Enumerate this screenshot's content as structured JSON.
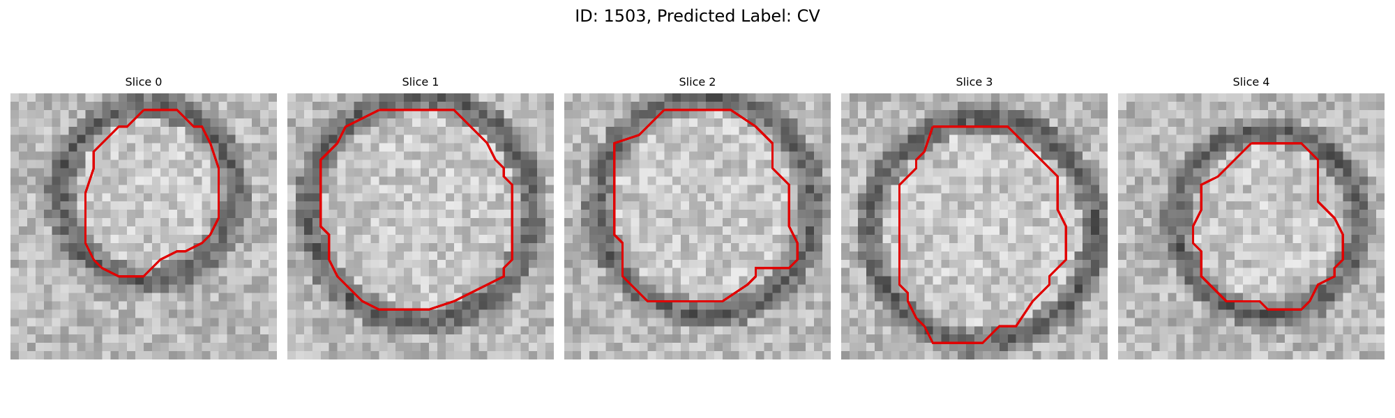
{
  "figure": {
    "title": "ID: 1503, Predicted Label: CV"
  },
  "panels": [
    {
      "title": "Slice 0"
    },
    {
      "title": "Slice 1"
    },
    {
      "title": "Slice 2"
    },
    {
      "title": "Slice 3"
    },
    {
      "title": "Slice 4"
    }
  ],
  "contour_color": "#e00000"
}
